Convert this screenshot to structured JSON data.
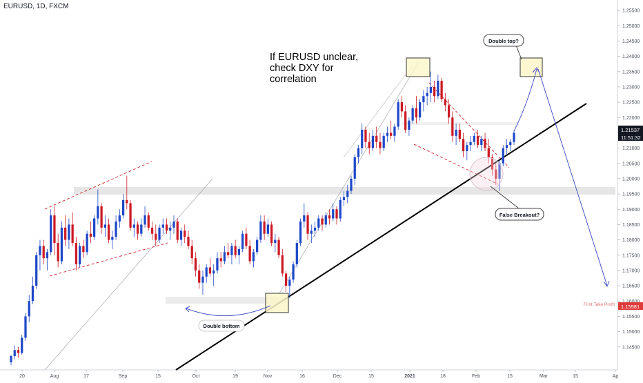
{
  "header": {
    "symbol": "EURUSD, 1D, FXCM"
  },
  "colors": {
    "bull": "#1e48c8",
    "bear": "#cc1a24",
    "trend": "#000000",
    "dashed": "#d13a44",
    "projection": "#4a55c8",
    "zone": "#e8e8e8",
    "box_fill": "#fdf6c9",
    "box_stroke": "#333333",
    "current_tag": "#131722",
    "profit": "#e03b3b"
  },
  "annotations": {
    "headline_line1": "If EURUSD unclear,",
    "headline_line2": "check DXY for",
    "headline_line3": "correlation",
    "double_top": "Double top?",
    "false_breakout": "False Breakout?",
    "double_bottom": "Double bottom",
    "first_take_profit": "First Take Profit"
  },
  "price_tags": {
    "current_price": "1.21537",
    "countdown": "11:51:32",
    "target_price": "1.15981"
  },
  "chart_data": {
    "type": "candlestick",
    "title": "EURUSD, 1D, FXCM",
    "ylim": [
      1.1375,
      1.2575
    ],
    "y_ticks": [
      "1.25500",
      "1.25000",
      "1.24500",
      "1.24000",
      "1.23500",
      "1.23000",
      "1.22500",
      "1.22000",
      "1.21500",
      "1.21000",
      "1.20500",
      "1.20000",
      "1.19500",
      "1.19000",
      "1.18500",
      "1.18000",
      "1.17500",
      "1.17000",
      "1.16500",
      "1.16000",
      "1.15500",
      "1.15000",
      "1.14500"
    ],
    "x_ticks": [
      "20",
      "Aug",
      "17",
      "Sep",
      "15",
      "Oct",
      "19",
      "Nov",
      "16",
      "Dec",
      "15",
      "2021",
      "18",
      "Feb",
      "15",
      "Mar",
      "15",
      "Ap"
    ],
    "grid": false,
    "candles": [
      [
        1.14,
        1.1425,
        1.139,
        1.142
      ],
      [
        1.142,
        1.1455,
        1.141,
        1.144
      ],
      [
        1.144,
        1.145,
        1.1415,
        1.143
      ],
      [
        1.143,
        1.149,
        1.1425,
        1.148
      ],
      [
        1.148,
        1.156,
        1.147,
        1.155
      ],
      [
        1.155,
        1.162,
        1.153,
        1.16
      ],
      [
        1.16,
        1.168,
        1.159,
        1.165
      ],
      [
        1.165,
        1.176,
        1.164,
        1.175
      ],
      [
        1.175,
        1.18,
        1.17,
        1.178
      ],
      [
        1.178,
        1.18,
        1.172,
        1.174
      ],
      [
        1.174,
        1.177,
        1.17,
        1.176
      ],
      [
        1.176,
        1.19,
        1.175,
        1.188
      ],
      [
        1.188,
        1.191,
        1.175,
        1.179
      ],
      [
        1.179,
        1.182,
        1.171,
        1.173
      ],
      [
        1.173,
        1.186,
        1.172,
        1.184
      ],
      [
        1.184,
        1.188,
        1.178,
        1.18
      ],
      [
        1.18,
        1.187,
        1.177,
        1.185
      ],
      [
        1.185,
        1.189,
        1.178,
        1.179
      ],
      [
        1.179,
        1.181,
        1.17,
        1.172
      ],
      [
        1.172,
        1.179,
        1.171,
        1.178
      ],
      [
        1.178,
        1.18,
        1.174,
        1.176
      ],
      [
        1.176,
        1.183,
        1.175,
        1.182
      ],
      [
        1.182,
        1.186,
        1.179,
        1.181
      ],
      [
        1.181,
        1.188,
        1.18,
        1.187
      ],
      [
        1.187,
        1.1965,
        1.185,
        1.191
      ],
      [
        1.191,
        1.192,
        1.182,
        1.184
      ],
      [
        1.184,
        1.188,
        1.181,
        1.185
      ],
      [
        1.185,
        1.187,
        1.179,
        1.18
      ],
      [
        1.18,
        1.183,
        1.177,
        1.181
      ],
      [
        1.181,
        1.188,
        1.18,
        1.186
      ],
      [
        1.186,
        1.19,
        1.184,
        1.188
      ],
      [
        1.188,
        1.195,
        1.187,
        1.193
      ],
      [
        1.193,
        1.201,
        1.19,
        1.192
      ],
      [
        1.192,
        1.193,
        1.183,
        1.184
      ],
      [
        1.184,
        1.187,
        1.181,
        1.185
      ],
      [
        1.185,
        1.186,
        1.18,
        1.182
      ],
      [
        1.182,
        1.187,
        1.181,
        1.185
      ],
      [
        1.185,
        1.191,
        1.184,
        1.188
      ],
      [
        1.188,
        1.189,
        1.183,
        1.184
      ],
      [
        1.184,
        1.186,
        1.18,
        1.182
      ],
      [
        1.182,
        1.185,
        1.178,
        1.18
      ],
      [
        1.18,
        1.185,
        1.179,
        1.184
      ],
      [
        1.184,
        1.187,
        1.182,
        1.185
      ],
      [
        1.185,
        1.187,
        1.182,
        1.183
      ],
      [
        1.183,
        1.186,
        1.18,
        1.184
      ],
      [
        1.184,
        1.188,
        1.182,
        1.186
      ],
      [
        1.186,
        1.187,
        1.179,
        1.18
      ],
      [
        1.18,
        1.184,
        1.178,
        1.183
      ],
      [
        1.183,
        1.185,
        1.179,
        1.181
      ],
      [
        1.181,
        1.183,
        1.177,
        1.178
      ],
      [
        1.178,
        1.18,
        1.172,
        1.174
      ],
      [
        1.174,
        1.176,
        1.168,
        1.17
      ],
      [
        1.17,
        1.172,
        1.164,
        1.166
      ],
      [
        1.166,
        1.17,
        1.162,
        1.168
      ],
      [
        1.168,
        1.172,
        1.166,
        1.171
      ],
      [
        1.171,
        1.174,
        1.168,
        1.169
      ],
      [
        1.169,
        1.172,
        1.165,
        1.17
      ],
      [
        1.17,
        1.176,
        1.169,
        1.174
      ],
      [
        1.174,
        1.176,
        1.171,
        1.173
      ],
      [
        1.173,
        1.178,
        1.172,
        1.176
      ],
      [
        1.176,
        1.179,
        1.174,
        1.175
      ],
      [
        1.175,
        1.179,
        1.172,
        1.178
      ],
      [
        1.178,
        1.18,
        1.174,
        1.175
      ],
      [
        1.175,
        1.178,
        1.172,
        1.177
      ],
      [
        1.177,
        1.183,
        1.176,
        1.182
      ],
      [
        1.182,
        1.184,
        1.177,
        1.178
      ],
      [
        1.178,
        1.18,
        1.172,
        1.173
      ],
      [
        1.173,
        1.177,
        1.171,
        1.176
      ],
      [
        1.176,
        1.181,
        1.175,
        1.18
      ],
      [
        1.18,
        1.188,
        1.179,
        1.186
      ],
      [
        1.186,
        1.188,
        1.18,
        1.182
      ],
      [
        1.182,
        1.187,
        1.181,
        1.185
      ],
      [
        1.185,
        1.186,
        1.178,
        1.179
      ],
      [
        1.179,
        1.182,
        1.176,
        1.18
      ],
      [
        1.18,
        1.181,
        1.174,
        1.175
      ],
      [
        1.175,
        1.177,
        1.168,
        1.169
      ],
      [
        1.169,
        1.17,
        1.163,
        1.165
      ],
      [
        1.165,
        1.168,
        1.161,
        1.167
      ],
      [
        1.167,
        1.173,
        1.166,
        1.172
      ],
      [
        1.172,
        1.18,
        1.171,
        1.179
      ],
      [
        1.179,
        1.187,
        1.178,
        1.186
      ],
      [
        1.186,
        1.192,
        1.184,
        1.188
      ],
      [
        1.188,
        1.189,
        1.18,
        1.182
      ],
      [
        1.182,
        1.185,
        1.179,
        1.183
      ],
      [
        1.183,
        1.186,
        1.181,
        1.184
      ],
      [
        1.184,
        1.188,
        1.183,
        1.187
      ],
      [
        1.187,
        1.188,
        1.183,
        1.185
      ],
      [
        1.185,
        1.189,
        1.184,
        1.188
      ],
      [
        1.188,
        1.19,
        1.185,
        1.187
      ],
      [
        1.187,
        1.192,
        1.186,
        1.19
      ],
      [
        1.19,
        1.191,
        1.185,
        1.187
      ],
      [
        1.187,
        1.194,
        1.186,
        1.193
      ],
      [
        1.193,
        1.196,
        1.191,
        1.194
      ],
      [
        1.194,
        1.198,
        1.192,
        1.196
      ],
      [
        1.196,
        1.201,
        1.195,
        1.2
      ],
      [
        1.2,
        1.208,
        1.198,
        1.207
      ],
      [
        1.207,
        1.211,
        1.205,
        1.21
      ],
      [
        1.21,
        1.218,
        1.208,
        1.216
      ],
      [
        1.216,
        1.217,
        1.21,
        1.212
      ],
      [
        1.212,
        1.215,
        1.208,
        1.21
      ],
      [
        1.21,
        1.216,
        1.209,
        1.214
      ],
      [
        1.214,
        1.217,
        1.21,
        1.212
      ],
      [
        1.212,
        1.215,
        1.208,
        1.21
      ],
      [
        1.21,
        1.215,
        1.209,
        1.214
      ],
      [
        1.214,
        1.217,
        1.212,
        1.215
      ],
      [
        1.215,
        1.219,
        1.213,
        1.214
      ],
      [
        1.214,
        1.218,
        1.212,
        1.217
      ],
      [
        1.217,
        1.226,
        1.216,
        1.225
      ],
      [
        1.225,
        1.227,
        1.22,
        1.222
      ],
      [
        1.222,
        1.224,
        1.215,
        1.216
      ],
      [
        1.216,
        1.22,
        1.214,
        1.219
      ],
      [
        1.219,
        1.224,
        1.218,
        1.223
      ],
      [
        1.223,
        1.227,
        1.218,
        1.22
      ],
      [
        1.22,
        1.226,
        1.219,
        1.225
      ],
      [
        1.225,
        1.229,
        1.222,
        1.227
      ],
      [
        1.227,
        1.23,
        1.224,
        1.228
      ],
      [
        1.228,
        1.235,
        1.225,
        1.23
      ],
      [
        1.23,
        1.232,
        1.225,
        1.227
      ],
      [
        1.227,
        1.234,
        1.226,
        1.232
      ],
      [
        1.232,
        1.233,
        1.225,
        1.226
      ],
      [
        1.226,
        1.228,
        1.222,
        1.224
      ],
      [
        1.224,
        1.226,
        1.218,
        1.22
      ],
      [
        1.22,
        1.222,
        1.212,
        1.214
      ],
      [
        1.214,
        1.218,
        1.211,
        1.216
      ],
      [
        1.216,
        1.218,
        1.212,
        1.213
      ],
      [
        1.213,
        1.215,
        1.207,
        1.209
      ],
      [
        1.209,
        1.212,
        1.206,
        1.211
      ],
      [
        1.211,
        1.214,
        1.209,
        1.212
      ],
      [
        1.212,
        1.215,
        1.211,
        1.214
      ],
      [
        1.214,
        1.216,
        1.21,
        1.211
      ],
      [
        1.211,
        1.214,
        1.209,
        1.213
      ],
      [
        1.213,
        1.215,
        1.209,
        1.21
      ],
      [
        1.21,
        1.213,
        1.205,
        1.207
      ],
      [
        1.207,
        1.208,
        1.201,
        1.203
      ],
      [
        1.203,
        1.205,
        1.198,
        1.2
      ],
      [
        1.2,
        1.206,
        1.196,
        1.205
      ],
      [
        1.205,
        1.211,
        1.204,
        1.21
      ],
      [
        1.21,
        1.213,
        1.208,
        1.211
      ],
      [
        1.211,
        1.213,
        1.209,
        1.212
      ],
      [
        1.212,
        1.216,
        1.211,
        1.215
      ]
    ]
  }
}
